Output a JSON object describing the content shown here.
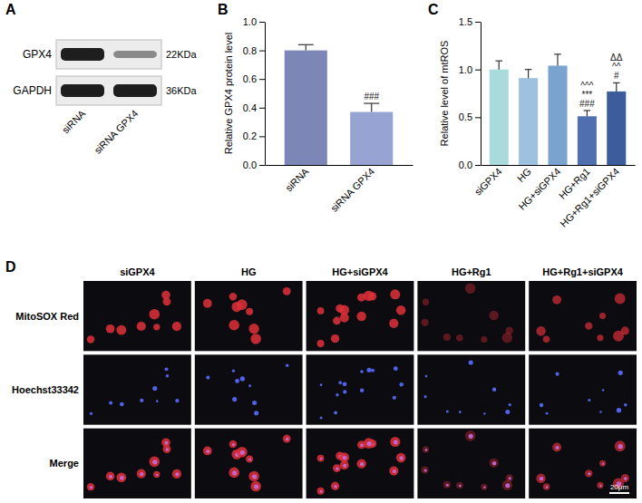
{
  "chart_data": [
    {
      "type": "bar",
      "panel": "B",
      "y_label": "Relative GPX4 protein level",
      "categories": [
        "siRNA",
        "siRNA GPX4"
      ],
      "values": [
        0.8,
        0.37
      ],
      "errors": [
        0.04,
        0.06
      ],
      "colors": [
        "#7c87b8",
        "#97a3d3"
      ],
      "annotations": [
        null,
        [
          "###"
        ]
      ],
      "ylim": [
        0,
        1.0
      ],
      "yticks": [
        {
          "value": 0,
          "label": "0.0"
        },
        {
          "value": 0.2,
          "label": "0.2"
        },
        {
          "value": 0.4,
          "label": "0.4"
        },
        {
          "value": 0.6,
          "label": "0.6"
        },
        {
          "value": 0.8,
          "label": "0.8"
        },
        {
          "value": 1.0,
          "label": "1.0"
        }
      ],
      "grid": false
    },
    {
      "type": "bar",
      "panel": "C",
      "y_label": "Relative level of mtROS",
      "categories": [
        "siGPX4",
        "HG",
        "HG+siGPX4",
        "HG+Rg1",
        "HG+Rg1+siGPX4"
      ],
      "values": [
        1.0,
        0.91,
        1.04,
        0.51,
        0.77
      ],
      "errors": [
        0.09,
        0.09,
        0.12,
        0.06,
        0.09
      ],
      "colors": [
        "#a9dadc",
        "#9ec1df",
        "#7aa3d0",
        "#4f6fae",
        "#3d5c9c"
      ],
      "annotations": [
        null,
        null,
        null,
        [
          "^^^",
          "***",
          "###"
        ],
        [
          "ΔΔ",
          "^^",
          "#"
        ]
      ],
      "ylim": [
        0,
        1.5
      ],
      "yticks": [
        {
          "value": 0,
          "label": "0.0"
        },
        {
          "value": 0.5,
          "label": "0.5"
        },
        {
          "value": 1.0,
          "label": "1.0"
        },
        {
          "value": 1.5,
          "label": "1.5"
        }
      ],
      "grid": false
    }
  ],
  "blot": {
    "panel": "A",
    "rows": [
      {
        "label": "GPX4",
        "size": "22KDa"
      },
      {
        "label": "GAPDH",
        "size": "36KDa"
      }
    ],
    "lanes": [
      "siRNA",
      "siRNA GPX4"
    ]
  },
  "images": {
    "panel": "D",
    "columns": [
      "siGPX4",
      "HG",
      "HG+siGPX4",
      "HG+Rg1",
      "HG+Rg1+siGPX4"
    ],
    "rows": [
      "MitoSOX Red",
      "Hoechst33342",
      "Merge"
    ],
    "scale_bar": "20μm"
  }
}
